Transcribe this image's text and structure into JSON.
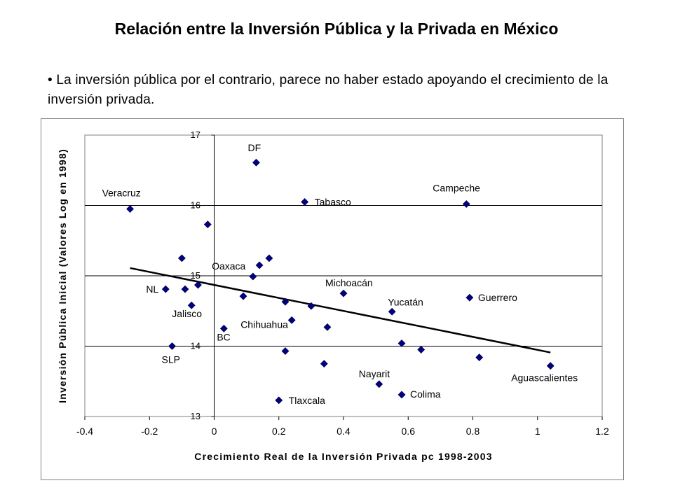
{
  "slide": {
    "title": "Relación entre la Inversión Pública y la Privada en México",
    "bullet": "• La inversión pública por el contrario, parece no haber estado apoyando el crecimiento de la inversión privada."
  },
  "chart_data": {
    "type": "scatter",
    "xlabel": "Crecimiento Real de la Inversión Privada pc 1998-2003",
    "ylabel": "Inversión Pública Inicial (Valores Log en 1998)",
    "xlim": [
      -0.4,
      1.2
    ],
    "ylim": [
      13,
      17
    ],
    "x_ticks": [
      "-0.4",
      "-0.2",
      "0",
      "0.2",
      "0.4",
      "0.6",
      "0.8",
      "1",
      "1.2"
    ],
    "x_tick_values": [
      -0.4,
      -0.2,
      0,
      0.2,
      0.4,
      0.6,
      0.8,
      1.0,
      1.2
    ],
    "y_ticks": [
      "13",
      "14",
      "15",
      "16",
      "17"
    ],
    "y_tick_values": [
      13,
      14,
      15,
      16,
      17
    ],
    "grid": "horizontal",
    "marker": "diamond",
    "marker_color": "#000080",
    "trendline": {
      "x": [
        -0.26,
        1.04
      ],
      "y": [
        15.11,
        13.91
      ],
      "color": "#000000"
    },
    "points": [
      {
        "x": 0.13,
        "y": 16.61,
        "label": "DF"
      },
      {
        "x": -0.26,
        "y": 15.95,
        "label": "Veracruz"
      },
      {
        "x": 0.28,
        "y": 16.05,
        "label": "Tabasco"
      },
      {
        "x": 0.78,
        "y": 16.02,
        "label": "Campeche"
      },
      {
        "x": -0.02,
        "y": 15.73,
        "label": ""
      },
      {
        "x": -0.1,
        "y": 15.25,
        "label": ""
      },
      {
        "x": 0.17,
        "y": 15.25,
        "label": ""
      },
      {
        "x": 0.14,
        "y": 15.15,
        "label": "Oaxaca"
      },
      {
        "x": 0.12,
        "y": 14.99,
        "label": ""
      },
      {
        "x": -0.05,
        "y": 14.87,
        "label": ""
      },
      {
        "x": -0.09,
        "y": 14.81,
        "label": ""
      },
      {
        "x": -0.15,
        "y": 14.81,
        "label": "NL"
      },
      {
        "x": 0.09,
        "y": 14.71,
        "label": ""
      },
      {
        "x": 0.4,
        "y": 14.75,
        "label": "Michoacán"
      },
      {
        "x": 0.79,
        "y": 14.69,
        "label": "Guerrero"
      },
      {
        "x": 0.22,
        "y": 14.63,
        "label": ""
      },
      {
        "x": 0.3,
        "y": 14.57,
        "label": ""
      },
      {
        "x": -0.07,
        "y": 14.58,
        "label": "Jalisco"
      },
      {
        "x": 0.55,
        "y": 14.49,
        "label": "Yucatán"
      },
      {
        "x": 0.24,
        "y": 14.37,
        "label": "Chihuahua"
      },
      {
        "x": 0.35,
        "y": 14.27,
        "label": ""
      },
      {
        "x": 0.03,
        "y": 14.25,
        "label": "BC"
      },
      {
        "x": 0.58,
        "y": 14.04,
        "label": ""
      },
      {
        "x": 0.64,
        "y": 13.95,
        "label": ""
      },
      {
        "x": -0.13,
        "y": 14.0,
        "label": "SLP"
      },
      {
        "x": 0.22,
        "y": 13.93,
        "label": ""
      },
      {
        "x": 0.82,
        "y": 13.84,
        "label": ""
      },
      {
        "x": 0.34,
        "y": 13.75,
        "label": ""
      },
      {
        "x": 1.04,
        "y": 13.72,
        "label": "Aguascalientes"
      },
      {
        "x": 0.51,
        "y": 13.46,
        "label": "Nayarit"
      },
      {
        "x": 0.58,
        "y": 13.31,
        "label": "Colima"
      },
      {
        "x": 0.2,
        "y": 13.23,
        "label": "Tlaxcala"
      }
    ]
  }
}
